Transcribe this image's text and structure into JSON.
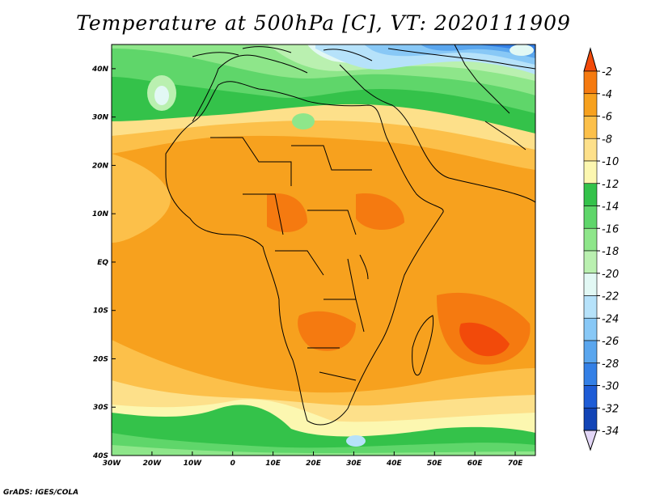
{
  "title": "Temperature at 500hPa [C], VT: 2020111909",
  "footer": "GrADS: IGES/COLA",
  "map": {
    "lon_range": [
      -30,
      75
    ],
    "lat_range": [
      -40,
      45
    ],
    "lat_labels": [
      "40N",
      "30N",
      "20N",
      "10N",
      "EQ",
      "10S",
      "20S",
      "30S",
      "40S"
    ],
    "lon_labels": [
      "30W",
      "20W",
      "10W",
      "0",
      "10E",
      "20E",
      "30E",
      "40E",
      "50E",
      "60E",
      "70E"
    ]
  },
  "colorbar": {
    "labels": [
      "-2",
      "-4",
      "-6",
      "-8",
      "-10",
      "-12",
      "-14",
      "-16",
      "-18",
      "-20",
      "-22",
      "-24",
      "-26",
      "-28",
      "-30",
      "-32",
      "-34"
    ],
    "colors": [
      "#f24a0a",
      "#f57a10",
      "#f7a11e",
      "#fcc04a",
      "#fde08a",
      "#fcf7b0",
      "#34c24a",
      "#5fd66a",
      "#8ee68a",
      "#baf0b0",
      "#e2f8f4",
      "#b6e2fa",
      "#88c8f6",
      "#5aa6ee",
      "#3480e6",
      "#1e5cd6",
      "#1244b6",
      "#0a1e80",
      "#e2d6f6"
    ]
  }
}
